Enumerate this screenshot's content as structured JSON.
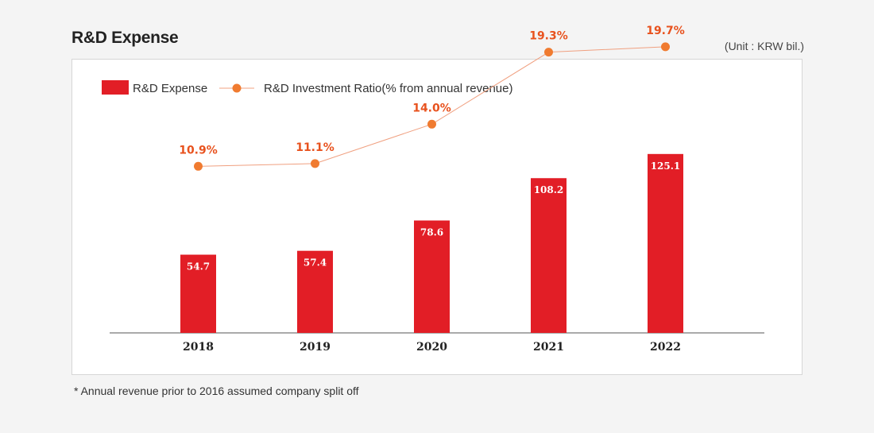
{
  "title": "R&D Expense",
  "unit": "(Unit : KRW bil.)",
  "footnote": "* Annual revenue prior to 2016 assumed company split off",
  "colors": {
    "bar": "#e21e26",
    "line": "#f0a080",
    "marker": "#f07b30",
    "ratio_text": "#e8521e"
  },
  "chart_data": {
    "type": "bar",
    "categories": [
      "2018",
      "2019",
      "2020",
      "2021",
      "2022"
    ],
    "series": [
      {
        "name": "R&D Expense",
        "type": "bar",
        "values": [
          54.7,
          57.4,
          78.6,
          108.2,
          125.1
        ],
        "labels": [
          "54.7",
          "57.4",
          "78.6",
          "108.2",
          "125.1"
        ]
      },
      {
        "name": "R&D Investment Ratio(% from annual revenue)",
        "type": "line",
        "values": [
          10.9,
          11.1,
          14.0,
          19.3,
          19.7
        ],
        "labels": [
          "10.9%",
          "11.1%",
          "14.0%",
          "19.3%",
          "19.7%"
        ]
      }
    ],
    "legend_position": "top-left"
  }
}
